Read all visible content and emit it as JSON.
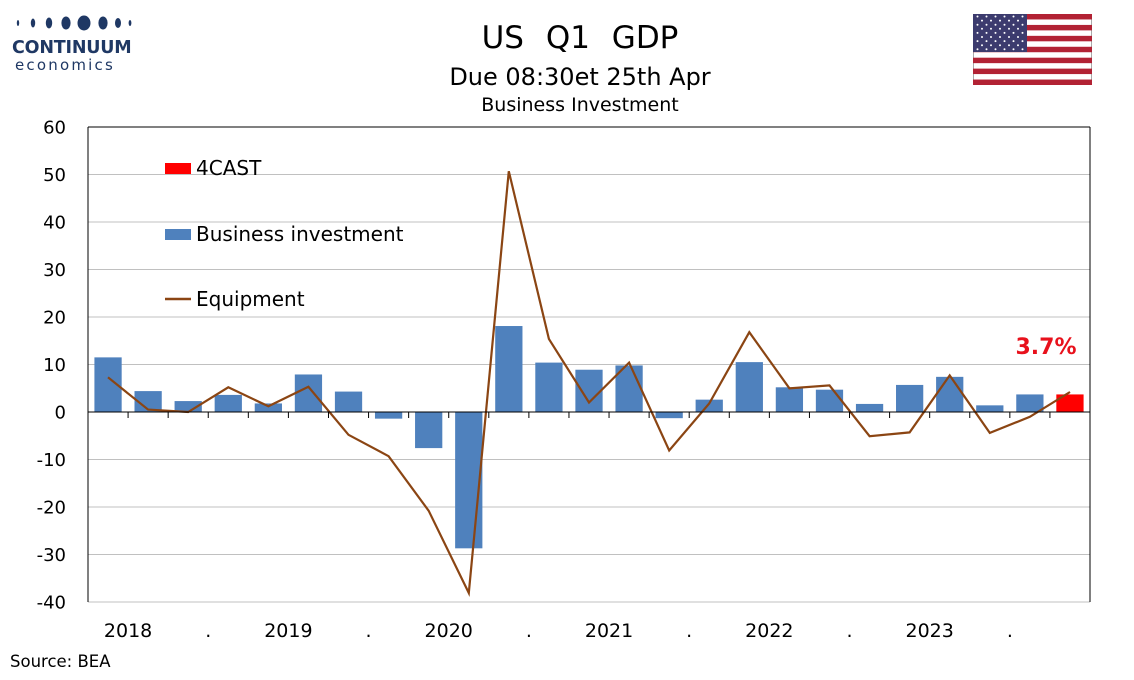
{
  "logo": {
    "line1": "CONTINUUM",
    "line2": "economics"
  },
  "header": {
    "title": "US   Q1 GDP",
    "subtitle": "Due 08:30et 25th Apr",
    "subtitle2": "Business Investment"
  },
  "flag_icon": "us-flag-icon",
  "source": "Source: BEA",
  "colors": {
    "bars": "#4f81bd",
    "forecast": "#ff0000",
    "line": "#8b4513",
    "grid": "#c0c0c0",
    "callout": "#e8111c"
  },
  "chart_data": {
    "type": "bar",
    "ylim": [
      -40,
      60
    ],
    "yticks": [
      "60",
      "50",
      "40",
      "30",
      "20",
      "10",
      "0",
      "-10",
      "-20",
      "-30",
      "-40"
    ],
    "xtick_labels": [
      "2018",
      ".",
      "2019",
      ".",
      "2020",
      ".",
      "2021",
      ".",
      "2022",
      ".",
      "2023",
      "."
    ],
    "grid": "horizontal",
    "legend_position": "top-left",
    "legend": [
      "4CAST",
      "Business investment",
      "Equipment"
    ],
    "callout": "3.7%",
    "quarters": [
      "2018Q1",
      "2018Q2",
      "2018Q3",
      "2018Q4",
      "2019Q1",
      "2019Q2",
      "2019Q3",
      "2019Q4",
      "2020Q1",
      "2020Q2",
      "2020Q3",
      "2020Q4",
      "2021Q1",
      "2021Q2",
      "2021Q3",
      "2021Q4",
      "2022Q1",
      "2022Q2",
      "2022Q3",
      "2022Q4",
      "2023Q1",
      "2023Q2",
      "2023Q3",
      "2023Q4",
      "2024Q1"
    ],
    "series": [
      {
        "name": "Business investment",
        "type": "bar",
        "values": [
          11.5,
          4.4,
          2.3,
          3.6,
          1.8,
          7.9,
          4.3,
          -1.4,
          -7.6,
          -28.7,
          18.1,
          10.4,
          8.9,
          9.8,
          -1.3,
          2.6,
          10.5,
          5.2,
          4.7,
          1.7,
          5.7,
          7.4,
          1.4,
          3.7,
          null
        ]
      },
      {
        "name": "4CAST",
        "type": "bar",
        "values": [
          null,
          null,
          null,
          null,
          null,
          null,
          null,
          null,
          null,
          null,
          null,
          null,
          null,
          null,
          null,
          null,
          null,
          null,
          null,
          null,
          null,
          null,
          null,
          null,
          3.7
        ]
      },
      {
        "name": "Equipment",
        "type": "line",
        "values": [
          7.3,
          0.5,
          0.0,
          5.2,
          1.2,
          5.3,
          -4.8,
          -9.3,
          -20.8,
          -38.1,
          50.7,
          15.4,
          2.0,
          10.4,
          -8.1,
          1.8,
          16.8,
          5.0,
          5.6,
          -5.1,
          -4.3,
          7.7,
          -4.4,
          -1.0,
          4.2
        ]
      }
    ]
  }
}
